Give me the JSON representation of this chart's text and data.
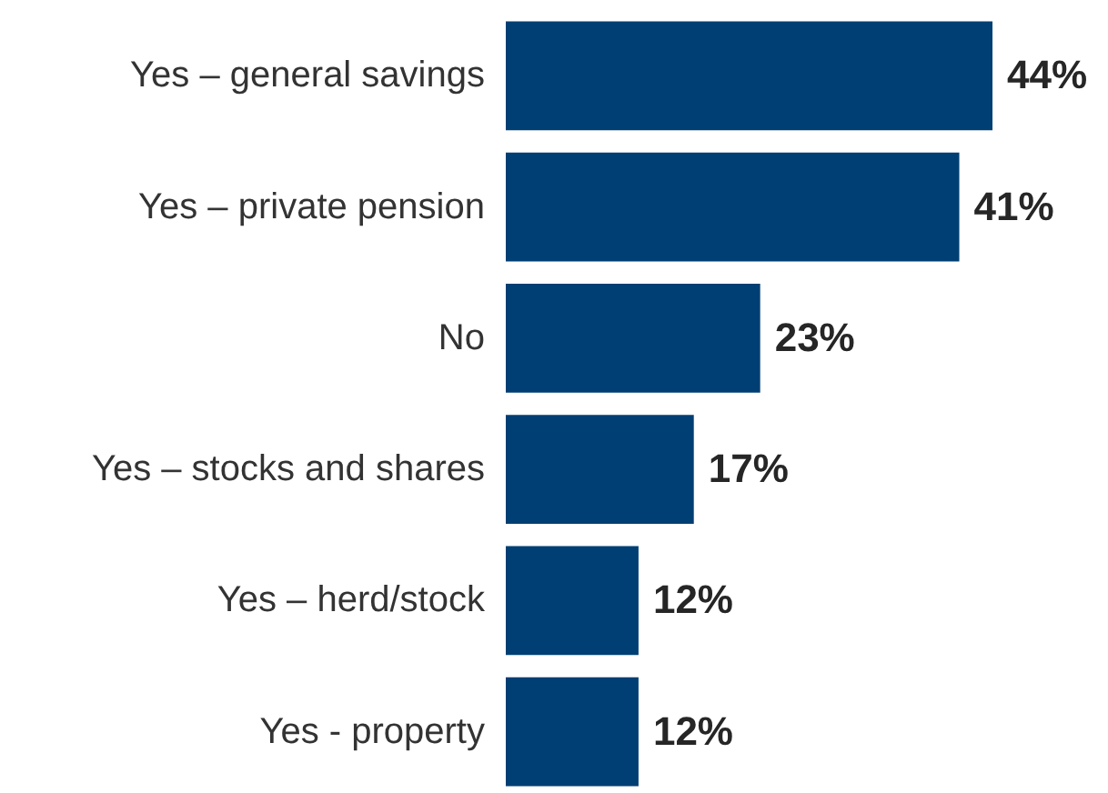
{
  "chart_data": {
    "type": "bar",
    "orientation": "horizontal",
    "categories": [
      "Yes – general savings",
      "Yes – private pension",
      "No",
      "Yes – stocks and shares",
      "Yes – herd/stock",
      "Yes - property"
    ],
    "values": [
      44,
      41,
      23,
      17,
      12,
      12
    ],
    "value_labels": [
      "44%",
      "41%",
      "23%",
      "17%",
      "12%",
      "12%"
    ],
    "color": "#003f73"
  }
}
